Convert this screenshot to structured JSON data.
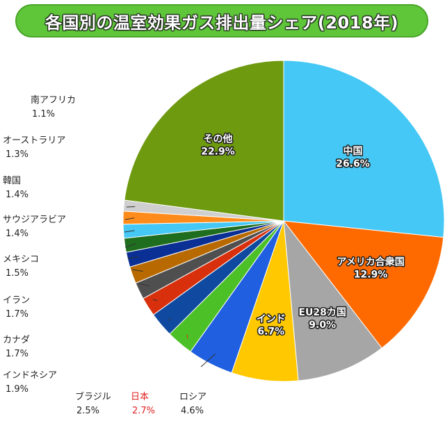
{
  "title": "各国別の温室効果ガス排出量シェア(2018年)",
  "colors": {
    "title_bg": "#5fc63a",
    "highlight": "#e02020"
  },
  "chart_data": {
    "type": "pie",
    "title": "各国別の温室効果ガス排出量シェア(2018年)",
    "unit": "%",
    "slices": [
      {
        "name": "中国",
        "value": 26.6,
        "label": "26.6%",
        "color": "#45c8f5",
        "label_pos": "inside"
      },
      {
        "name": "アメリカ合衆国",
        "value": 12.9,
        "label": "12.9%",
        "color": "#ff6a00",
        "label_pos": "inside"
      },
      {
        "name": "EU28カ国",
        "value": 9.0,
        "label": "9.0%",
        "color": "#a6a6a6",
        "label_pos": "inside"
      },
      {
        "name": "インド",
        "value": 6.7,
        "label": "6.7%",
        "color": "#ffc800",
        "label_pos": "inside"
      },
      {
        "name": "ロシア",
        "value": 4.6,
        "label": "4.6%",
        "color": "#1f5fe0",
        "label_pos": "outside"
      },
      {
        "name": "日本",
        "value": 2.7,
        "label": "2.7%",
        "color": "#4cc027",
        "label_pos": "outside",
        "highlight": true
      },
      {
        "name": "ブラジル",
        "value": 2.5,
        "label": "2.5%",
        "color": "#0f4aa0",
        "label_pos": "outside"
      },
      {
        "name": "インドネシア",
        "value": 1.9,
        "label": "1.9%",
        "color": "#d8300c",
        "label_pos": "outside"
      },
      {
        "name": "カナダ",
        "value": 1.7,
        "label": "1.7%",
        "color": "#4f4f4f",
        "label_pos": "outside"
      },
      {
        "name": "イラン",
        "value": 1.7,
        "label": "1.7%",
        "color": "#b86a00",
        "label_pos": "outside"
      },
      {
        "name": "メキシコ",
        "value": 1.5,
        "label": "1.5%",
        "color": "#0a2f95",
        "label_pos": "outside"
      },
      {
        "name": "サウジアラビア",
        "value": 1.4,
        "label": "1.4%",
        "color": "#1f6e1f",
        "label_pos": "outside"
      },
      {
        "name": "韓国",
        "value": 1.4,
        "label": "1.4%",
        "color": "#45c8f5",
        "label_pos": "outside"
      },
      {
        "name": "オーストラリア",
        "value": 1.3,
        "label": "1.3%",
        "color": "#ff8c1a",
        "label_pos": "outside"
      },
      {
        "name": "南アフリカ",
        "value": 1.1,
        "label": "1.1%",
        "color": "#cfcfcf",
        "label_pos": "outside"
      },
      {
        "name": "その他",
        "value": 22.9,
        "label": "22.9%",
        "color": "#6e9a10",
        "label_pos": "inside"
      }
    ]
  }
}
